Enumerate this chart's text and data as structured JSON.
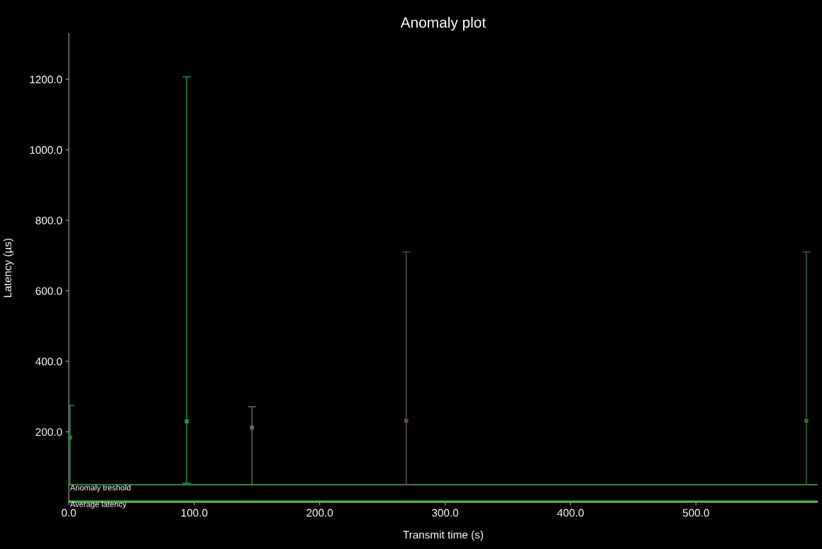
{
  "chart_data": {
    "type": "scatter",
    "title": "Anomaly plot",
    "xlabel": "Transmit time (s)",
    "ylabel": "Latency (µs)",
    "x": [
      1,
      94,
      146,
      269,
      588
    ],
    "values": [
      184,
      230,
      212,
      231,
      231
    ],
    "errors": [
      [
        50,
        275
      ],
      [
        54,
        1207
      ],
      [
        50,
        271
      ],
      [
        50,
        710
      ],
      [
        50,
        710
      ]
    ],
    "colors": [
      "#1f8f3a",
      "#1fa040",
      "#5a7a5a",
      "#6a4a66",
      "#3a6a3a"
    ],
    "xlim": [
      0,
      597
    ],
    "ylim": [
      0,
      1330
    ],
    "xticks": [
      {
        "value": 0,
        "label": "0.0"
      },
      {
        "value": 100,
        "label": "100.0"
      },
      {
        "value": 200,
        "label": "200.0"
      },
      {
        "value": 300,
        "label": "300.0"
      },
      {
        "value": 400,
        "label": "400.0"
      },
      {
        "value": 500,
        "label": "500.0"
      }
    ],
    "yticks": [
      {
        "value": 200,
        "label": "200.0"
      },
      {
        "value": 400,
        "label": "400.0"
      },
      {
        "value": 600,
        "label": "600.0"
      },
      {
        "value": 800,
        "label": "800.0"
      },
      {
        "value": 1000,
        "label": "1000.0"
      },
      {
        "value": 1200,
        "label": "1200.0"
      }
    ],
    "ref_lines": [
      {
        "axis": "y",
        "value": 50,
        "label": "Anomaly treshold",
        "color": "#3a8a4a"
      },
      {
        "axis": "y",
        "value": 3,
        "label": "Average latency",
        "color": "#22cc22"
      }
    ],
    "marker": "square",
    "grid": false
  }
}
